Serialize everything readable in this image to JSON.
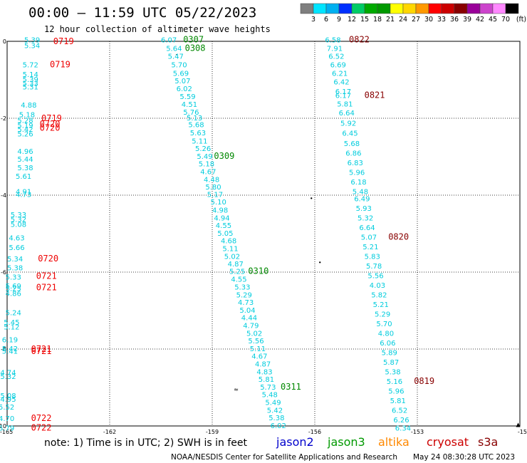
{
  "header": {
    "title": "00:00 – 11:59 UTC 05/22/2023",
    "subtitle": "12 hour collection of altimeter wave heights"
  },
  "colorbar": {
    "labels": [
      "3",
      "6",
      "9",
      "12",
      "15",
      "18",
      "21",
      "24",
      "27",
      "30",
      "33",
      "36",
      "39",
      "42",
      "45",
      "70"
    ],
    "unit": "(ft)",
    "colors": [
      "#7f7f7f",
      "#00e5ff",
      "#00b0f0",
      "#0030ff",
      "#00cc66",
      "#00aa00",
      "#009900",
      "#ffff00",
      "#ffd700",
      "#ff9900",
      "#ff0000",
      "#cc0000",
      "#880000",
      "#990099",
      "#cc44cc",
      "#ff88ff",
      "#000000"
    ]
  },
  "axes": {
    "x_ticks": [
      "-165",
      "-162",
      "-159",
      "-156",
      "-153",
      "-15"
    ],
    "y_ticks": [
      "0",
      "-2",
      "-4",
      "-6",
      "-8",
      "-10"
    ]
  },
  "legend": [
    {
      "name": "jason2",
      "color": "#0000cc"
    },
    {
      "name": "jason3",
      "color": "#009900"
    },
    {
      "name": "altika",
      "color": "#ff8800"
    },
    {
      "name": "cryosat",
      "color": "#cc0000"
    },
    {
      "name": "s3a",
      "color": "#880000"
    }
  ],
  "footer": {
    "note": "note:  1) Time is in UTC; 2) SWH is in feet",
    "credit": "NOAA/NESDIS Center for Satellite Applications and Research",
    "timestamp": "May 24 08:30:28 UTC 2023"
  },
  "tracks": [
    {
      "satellite": "cryosat",
      "value_color": "#00ccdd",
      "time_color": "#ee0000",
      "values": [
        {
          "v": "5.39",
          "lon": -164.5,
          "lat": 0.05
        },
        {
          "v": "5.34",
          "lon": -164.5,
          "lat": -0.1
        },
        {
          "v": "5.72",
          "lon": -164.55,
          "lat": -0.6
        },
        {
          "v": "5.14",
          "lon": -164.55,
          "lat": -0.85
        },
        {
          "v": "5.39",
          "lon": -164.55,
          "lat": -0.98
        },
        {
          "v": "5.33",
          "lon": -164.55,
          "lat": -1.08
        },
        {
          "v": "5.31",
          "lon": -164.55,
          "lat": -1.18
        },
        {
          "v": "4.88",
          "lon": -164.6,
          "lat": -1.65
        },
        {
          "v": "5.18",
          "lon": -164.65,
          "lat": -1.9
        },
        {
          "v": "5.28",
          "lon": -164.7,
          "lat": -2.05
        },
        {
          "v": "5.19",
          "lon": -164.7,
          "lat": -2.18
        },
        {
          "v": "5.42",
          "lon": -164.7,
          "lat": -2.28
        },
        {
          "v": "5.26",
          "lon": -164.7,
          "lat": -2.4
        },
        {
          "v": "4.96",
          "lon": -164.7,
          "lat": -2.85
        },
        {
          "v": "5.44",
          "lon": -164.7,
          "lat": -3.06
        },
        {
          "v": "5.38",
          "lon": -164.7,
          "lat": -3.28
        },
        {
          "v": "5.61",
          "lon": -164.75,
          "lat": -3.5
        },
        {
          "v": "4.91",
          "lon": -164.75,
          "lat": -3.9
        },
        {
          "v": "4.73",
          "lon": -164.75,
          "lat": -3.97
        },
        {
          "v": "5.33",
          "lon": -164.9,
          "lat": -4.5
        },
        {
          "v": "5.32",
          "lon": -164.9,
          "lat": -4.62
        },
        {
          "v": "5.08",
          "lon": -164.9,
          "lat": -4.75
        },
        {
          "v": "4.63",
          "lon": -164.95,
          "lat": -5.1
        },
        {
          "v": "5.66",
          "lon": -164.95,
          "lat": -5.35
        },
        {
          "v": "5.34",
          "lon": -165.0,
          "lat": -5.65
        },
        {
          "v": "5.38",
          "lon": -165.0,
          "lat": -5.88
        },
        {
          "v": "5.33",
          "lon": -165.05,
          "lat": -6.12
        },
        {
          "v": "5.69",
          "lon": -165.05,
          "lat": -6.35
        },
        {
          "v": "5.25",
          "lon": -165.05,
          "lat": -6.42
        },
        {
          "v": "4.86",
          "lon": -165.05,
          "lat": -6.55
        },
        {
          "v": "5.24",
          "lon": -165.05,
          "lat": -7.05
        },
        {
          "v": "5.45",
          "lon": -165.1,
          "lat": -7.3
        },
        {
          "v": "5.12",
          "lon": -165.1,
          "lat": -7.42
        },
        {
          "v": "6.19",
          "lon": -165.15,
          "lat": -7.75
        },
        {
          "v": "5.42",
          "lon": -165.15,
          "lat": -7.98
        },
        {
          "v": "5.41",
          "lon": -165.15,
          "lat": -8.05
        },
        {
          "v": "4.74",
          "lon": -165.2,
          "lat": -8.6
        },
        {
          "v": "5.32",
          "lon": -165.2,
          "lat": -8.7
        },
        {
          "v": "5.08",
          "lon": -165.2,
          "lat": -9.2
        },
        {
          "v": "4.95",
          "lon": -165.2,
          "lat": -9.3
        },
        {
          "v": "5.52",
          "lon": -165.25,
          "lat": -9.5
        },
        {
          "v": "4.70",
          "lon": -165.25,
          "lat": -9.8
        },
        {
          "v": "5.79",
          "lon": -165.25,
          "lat": -10.05
        }
      ],
      "times": [
        {
          "t": "0719",
          "lon": -163.65,
          "lat": 0.0
        },
        {
          "t": "0719",
          "lon": -163.75,
          "lat": -0.6
        },
        {
          "t": "0719",
          "lon": -164.0,
          "lat": -2.0
        },
        {
          "t": "0720",
          "lon": -164.05,
          "lat": -2.15
        },
        {
          "t": "0720",
          "lon": -164.05,
          "lat": -2.25
        },
        {
          "t": "0720",
          "lon": -164.1,
          "lat": -5.65
        },
        {
          "t": "0721",
          "lon": -164.15,
          "lat": -6.1
        },
        {
          "t": "0721",
          "lon": -164.15,
          "lat": -6.4
        },
        {
          "t": "0721",
          "lon": -164.3,
          "lat": -8.0
        },
        {
          "t": "0721",
          "lon": -164.3,
          "lat": -8.06
        },
        {
          "t": "0722",
          "lon": -164.3,
          "lat": -9.8
        },
        {
          "t": "0722",
          "lon": -164.3,
          "lat": -10.05
        }
      ]
    },
    {
      "satellite": "jason3",
      "value_color": "#00ccdd",
      "time_color": "#008800",
      "values": [
        {
          "v": "6.07",
          "lon": -160.5,
          "lat": 0.05
        },
        {
          "v": "5.64",
          "lon": -160.35,
          "lat": -0.18
        },
        {
          "v": "5.47",
          "lon": -160.3,
          "lat": -0.38
        },
        {
          "v": "5.70",
          "lon": -160.2,
          "lat": -0.6
        },
        {
          "v": "5.69",
          "lon": -160.15,
          "lat": -0.82
        },
        {
          "v": "5.07",
          "lon": -160.1,
          "lat": -1.02
        },
        {
          "v": "6.02",
          "lon": -160.05,
          "lat": -1.22
        },
        {
          "v": "5.59",
          "lon": -159.95,
          "lat": -1.43
        },
        {
          "v": "4.51",
          "lon": -159.9,
          "lat": -1.63
        },
        {
          "v": "5.76",
          "lon": -159.85,
          "lat": -1.83
        },
        {
          "v": "5.13",
          "lon": -159.75,
          "lat": -1.98
        },
        {
          "v": "5.68",
          "lon": -159.7,
          "lat": -2.16
        },
        {
          "v": "5.63",
          "lon": -159.65,
          "lat": -2.37
        },
        {
          "v": "5.11",
          "lon": -159.6,
          "lat": -2.58
        },
        {
          "v": "5.26",
          "lon": -159.5,
          "lat": -2.78
        },
        {
          "v": "5.49",
          "lon": -159.45,
          "lat": -2.98
        },
        {
          "v": "5.18",
          "lon": -159.4,
          "lat": -3.18
        },
        {
          "v": "4.67",
          "lon": -159.35,
          "lat": -3.38
        },
        {
          "v": "4.48",
          "lon": -159.25,
          "lat": -3.58
        },
        {
          "v": "5.80",
          "lon": -159.2,
          "lat": -3.78
        },
        {
          "v": "5.17",
          "lon": -159.15,
          "lat": -3.97
        },
        {
          "v": "5.10",
          "lon": -159.05,
          "lat": -4.17
        },
        {
          "v": "4.98",
          "lon": -159.0,
          "lat": -4.38
        },
        {
          "v": "4.94",
          "lon": -158.95,
          "lat": -4.58
        },
        {
          "v": "4.55",
          "lon": -158.9,
          "lat": -4.78
        },
        {
          "v": "5.05",
          "lon": -158.85,
          "lat": -4.98
        },
        {
          "v": "4.68",
          "lon": -158.75,
          "lat": -5.18
        },
        {
          "v": "5.11",
          "lon": -158.7,
          "lat": -5.38
        },
        {
          "v": "5.02",
          "lon": -158.65,
          "lat": -5.58
        },
        {
          "v": "4.87",
          "lon": -158.55,
          "lat": -5.78
        },
        {
          "v": "5.25",
          "lon": -158.5,
          "lat": -5.97
        },
        {
          "v": "4.55",
          "lon": -158.45,
          "lat": -6.18
        },
        {
          "v": "5.33",
          "lon": -158.35,
          "lat": -6.38
        },
        {
          "v": "5.29",
          "lon": -158.3,
          "lat": -6.58
        },
        {
          "v": "4.73",
          "lon": -158.25,
          "lat": -6.78
        },
        {
          "v": "5.04",
          "lon": -158.2,
          "lat": -6.98
        },
        {
          "v": "4.44",
          "lon": -158.15,
          "lat": -7.18
        },
        {
          "v": "4.79",
          "lon": -158.1,
          "lat": -7.38
        },
        {
          "v": "5.02",
          "lon": -158.0,
          "lat": -7.58
        },
        {
          "v": "5.56",
          "lon": -157.95,
          "lat": -7.78
        },
        {
          "v": "5.11",
          "lon": -157.9,
          "lat": -7.98
        },
        {
          "v": "4.67",
          "lon": -157.85,
          "lat": -8.18
        },
        {
          "v": "4.87",
          "lon": -157.75,
          "lat": -8.38
        },
        {
          "v": "4.83",
          "lon": -157.7,
          "lat": -8.58
        },
        {
          "v": "5.81",
          "lon": -157.65,
          "lat": -8.78
        },
        {
          "v": "5.73",
          "lon": -157.6,
          "lat": -8.98
        },
        {
          "v": "5.48",
          "lon": -157.55,
          "lat": -9.18
        },
        {
          "v": "5.49",
          "lon": -157.45,
          "lat": -9.38
        },
        {
          "v": "5.42",
          "lon": -157.4,
          "lat": -9.58
        },
        {
          "v": "5.38",
          "lon": -157.35,
          "lat": -9.78
        },
        {
          "v": "6.02",
          "lon": -157.3,
          "lat": -9.98
        }
      ],
      "times": [
        {
          "t": "0307",
          "lon": -159.85,
          "lat": 0.05
        },
        {
          "t": "0308",
          "lon": -159.8,
          "lat": -0.18
        },
        {
          "t": "0309",
          "lon": -158.95,
          "lat": -2.98
        },
        {
          "t": "0310",
          "lon": -157.95,
          "lat": -5.97
        },
        {
          "t": "0311",
          "lon": -157.0,
          "lat": -8.98
        }
      ]
    },
    {
      "satellite": "s3a",
      "value_color": "#00ccdd",
      "time_color": "#880000",
      "values": [
        {
          "v": "6.58",
          "lon": -155.7,
          "lat": 0.05
        },
        {
          "v": "7.91",
          "lon": -155.65,
          "lat": -0.18
        },
        {
          "v": "6.52",
          "lon": -155.6,
          "lat": -0.38
        },
        {
          "v": "6.69",
          "lon": -155.55,
          "lat": -0.6
        },
        {
          "v": "6.21",
          "lon": -155.5,
          "lat": -0.82
        },
        {
          "v": "6.42",
          "lon": -155.45,
          "lat": -1.05
        },
        {
          "v": "6.17",
          "lon": -155.4,
          "lat": -1.3
        },
        {
          "v": "6.17",
          "lon": -155.4,
          "lat": -1.4
        },
        {
          "v": "5.81",
          "lon": -155.35,
          "lat": -1.62
        },
        {
          "v": "6.64",
          "lon": -155.3,
          "lat": -1.85
        },
        {
          "v": "5.92",
          "lon": -155.25,
          "lat": -2.12
        },
        {
          "v": "6.45",
          "lon": -155.2,
          "lat": -2.38
        },
        {
          "v": "5.68",
          "lon": -155.15,
          "lat": -2.65
        },
        {
          "v": "6.86",
          "lon": -155.1,
          "lat": -2.9
        },
        {
          "v": "6.83",
          "lon": -155.05,
          "lat": -3.15
        },
        {
          "v": "5.96",
          "lon": -155.0,
          "lat": -3.4
        },
        {
          "v": "6.18",
          "lon": -154.95,
          "lat": -3.65
        },
        {
          "v": "5.48",
          "lon": -154.9,
          "lat": -3.9
        },
        {
          "v": "6.49",
          "lon": -154.85,
          "lat": -4.08
        },
        {
          "v": "5.93",
          "lon": -154.8,
          "lat": -4.33
        },
        {
          "v": "5.32",
          "lon": -154.75,
          "lat": -4.58
        },
        {
          "v": "6.64",
          "lon": -154.7,
          "lat": -4.83
        },
        {
          "v": "5.07",
          "lon": -154.65,
          "lat": -5.08
        },
        {
          "v": "5.21",
          "lon": -154.6,
          "lat": -5.33
        },
        {
          "v": "5.83",
          "lon": -154.55,
          "lat": -5.58
        },
        {
          "v": "5.78",
          "lon": -154.5,
          "lat": -5.83
        },
        {
          "v": "5.56",
          "lon": -154.45,
          "lat": -6.08
        },
        {
          "v": "4.03",
          "lon": -154.4,
          "lat": -6.33
        },
        {
          "v": "5.82",
          "lon": -154.35,
          "lat": -6.58
        },
        {
          "v": "5.21",
          "lon": -154.3,
          "lat": -6.83
        },
        {
          "v": "5.29",
          "lon": -154.25,
          "lat": -7.08
        },
        {
          "v": "5.70",
          "lon": -154.2,
          "lat": -7.33
        },
        {
          "v": "4.80",
          "lon": -154.15,
          "lat": -7.58
        },
        {
          "v": "6.06",
          "lon": -154.1,
          "lat": -7.83
        },
        {
          "v": "5.89",
          "lon": -154.05,
          "lat": -8.08
        },
        {
          "v": "5.87",
          "lon": -154.0,
          "lat": -8.33
        },
        {
          "v": "5.38",
          "lon": -153.95,
          "lat": -8.58
        },
        {
          "v": "5.16",
          "lon": -153.9,
          "lat": -8.83
        },
        {
          "v": "5.96",
          "lon": -153.85,
          "lat": -9.08
        },
        {
          "v": "5.81",
          "lon": -153.8,
          "lat": -9.33
        },
        {
          "v": "6.52",
          "lon": -153.75,
          "lat": -9.58
        },
        {
          "v": "6.26",
          "lon": -153.7,
          "lat": -9.83
        },
        {
          "v": "6.34",
          "lon": -153.65,
          "lat": -10.05
        }
      ],
      "times": [
        {
          "t": "0822",
          "lon": -155.0,
          "lat": 0.05
        },
        {
          "t": "0821",
          "lon": -154.55,
          "lat": -1.4
        },
        {
          "t": "0820",
          "lon": -153.85,
          "lat": -5.08
        },
        {
          "t": "0819",
          "lon": -153.1,
          "lat": -8.83
        }
      ]
    }
  ],
  "markers": [
    {
      "symbol": ".",
      "lon": -160.05,
      "lat": -0.3
    },
    {
      "symbol": "•",
      "lon": -156.1,
      "lat": -4.08
    },
    {
      "symbol": "•",
      "lon": -155.85,
      "lat": -5.75
    },
    {
      "symbol": "≈",
      "lon": -158.3,
      "lat": -9.05
    },
    {
      "symbol": "▲",
      "lon": -150.05,
      "lat": -9.95
    }
  ]
}
